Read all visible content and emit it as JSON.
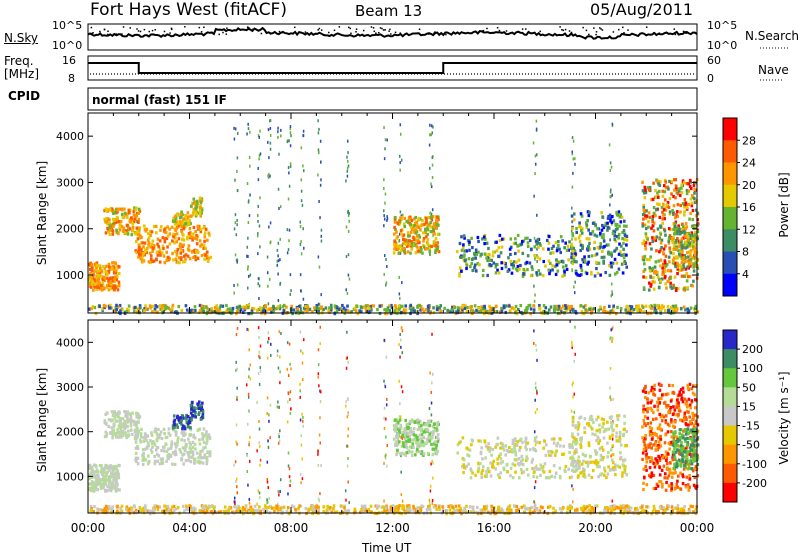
{
  "header": {
    "radar": "Fort Hays West (fitACF)",
    "beam": "Beam 13",
    "date": "05/Aug/2011"
  },
  "top_panels": {
    "nsky_label": "N.Sky",
    "nsearch_label": "N.Search",
    "noise_ticks": [
      "10^5",
      "10^0"
    ],
    "freq_label_line1": "Freq.",
    "freq_label_line2": "[MHz]",
    "freq_ticks": [
      "16",
      "8"
    ],
    "nave_label": "Nave",
    "nave_ticks": [
      "60",
      "0"
    ],
    "cpid_label": "CPID",
    "cpid_value": "normal (fast) 151 IF"
  },
  "chart_data": [
    {
      "type": "heatmap",
      "parameter": "Power",
      "ylabel": "Slant Range [km]",
      "yticks": [
        "4000",
        "3000",
        "2000",
        "1000"
      ],
      "ylim": [
        180,
        4500
      ],
      "xlim": [
        "00:00",
        "24:00"
      ],
      "colorbar_label": "Power [dB]",
      "colorbar_ticks": [
        "28",
        "24",
        "20",
        "16",
        "12",
        "8",
        "4"
      ],
      "colorbar_colors": [
        "#ff0000",
        "#ff5a00",
        "#ff9600",
        "#e6c800",
        "#64b432",
        "#3c8c64",
        "#2850b4",
        "#0000ff"
      ]
    },
    {
      "type": "heatmap",
      "parameter": "Velocity",
      "ylabel": "Slant Range [km]",
      "yticks": [
        "4000",
        "3000",
        "2000",
        "1000"
      ],
      "ylim": [
        180,
        4500
      ],
      "xlim": [
        "00:00",
        "24:00"
      ],
      "colorbar_label": "Velocity [m s⁻¹]",
      "colorbar_ticks": [
        "200",
        "100",
        "50",
        "15",
        "-15",
        "-50",
        "-100",
        "-200"
      ],
      "colorbar_colors": [
        "#2828c8",
        "#3c8c64",
        "#64c83c",
        "#b4dc96",
        "#c8c8c8",
        "#e6c800",
        "#ff9600",
        "#ff5a00",
        "#ff0000"
      ]
    }
  ],
  "xaxis": {
    "ticks": [
      "00:00",
      "04:00",
      "08:00",
      "12:00",
      "16:00",
      "20:00",
      "00:00"
    ],
    "label": "Time UT"
  }
}
